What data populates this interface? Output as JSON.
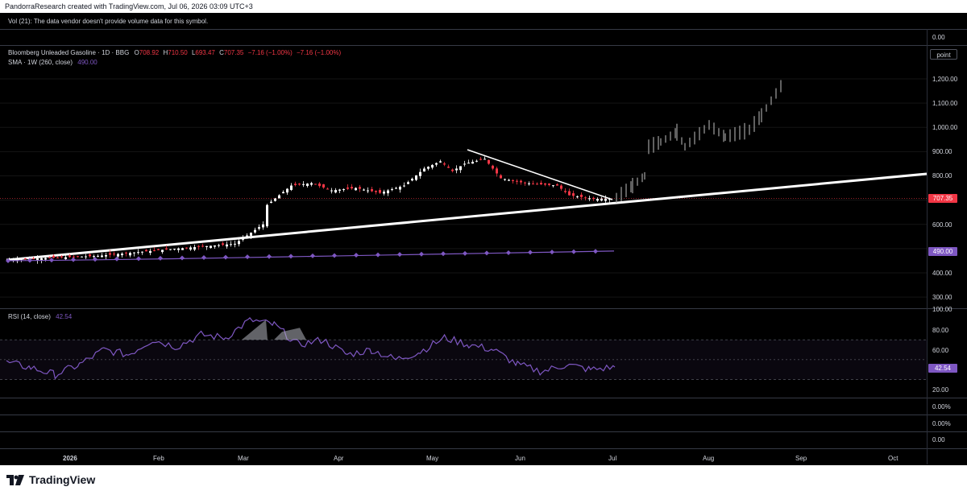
{
  "header": {
    "credit": "PandorraResearch created with TradingView.com, Jul 06, 2026 03:09 UTC+3"
  },
  "volume_pane": {
    "note": "Vol (21): The data vendor doesn't provide volume data for this symbol.",
    "axis_value": "0.00"
  },
  "main_pane": {
    "symbol_title": "Bloomberg Unleaded Gasoline · 1D · BBG",
    "ohlc": {
      "o_label": "O",
      "o": "708.92",
      "h_label": "H",
      "h": "710.50",
      "l_label": "L",
      "l": "693.47",
      "c_label": "C",
      "c": "707.35",
      "change": "−7.16 (−1.00%)",
      "change2": "−7.16 (−1.00%)"
    },
    "sma_label": "SMA · 1W (260, close)",
    "sma_value": "490.00",
    "unit_button": "point",
    "price_badge": "707.35",
    "sma_badge": "490.00",
    "y_ticks": [
      "1,200.00",
      "1,100.00",
      "1,000.00",
      "900.00",
      "800.00",
      "700.00",
      "600.00",
      "400.00",
      "300.00"
    ],
    "colors": {
      "up": "#ffffff",
      "down": "#f23645",
      "sma": "#7e57c2",
      "badge_price": "#f23645"
    }
  },
  "rsi_pane": {
    "label": "RSI (14, close)",
    "value": "42.54",
    "y_ticks": [
      "100.00",
      "80.00",
      "60.00",
      "20.00"
    ],
    "badge": "42.54"
  },
  "extra_panes": {
    "pct_a": "0.00%",
    "pct_b": "0.00%",
    "zero_a": "0.00",
    "zero_b": "0.00"
  },
  "x_axis": {
    "labels": [
      "2026",
      "Feb",
      "Mar",
      "Apr",
      "May",
      "Jun",
      "Jul",
      "Aug",
      "Sep",
      "Oct"
    ]
  },
  "footer": {
    "brand": "TradingView"
  },
  "chart_data": {
    "type": "line",
    "title": "Bloomberg Unleaded Gasoline · 1D · BBG",
    "xlabel": "",
    "ylabel": "",
    "ylim": [
      270,
      1260
    ],
    "series": [
      {
        "name": "SMA · 1W (260, close)",
        "values": [
          450,
          452,
          455,
          458,
          462,
          466,
          470,
          474,
          478,
          482,
          486,
          490
        ]
      },
      {
        "name": "RSI (14, close)",
        "values": [
          47,
          42,
          35,
          45,
          60,
          55,
          70,
          63,
          75,
          72,
          90,
          85,
          65,
          70,
          55,
          60,
          50,
          58,
          72,
          65,
          60,
          45,
          38,
          45,
          40,
          42.54
        ]
      }
    ],
    "close_reference": [
      [
        "2026-01-01",
        450
      ],
      [
        "2026-02-01",
        480
      ],
      [
        "2026-03-01",
        510
      ],
      [
        "2026-03-20",
        760
      ],
      [
        "2026-04-01",
        740
      ],
      [
        "2026-05-01",
        850
      ],
      [
        "2026-05-15",
        890
      ],
      [
        "2026-06-01",
        760
      ],
      [
        "2026-06-25",
        707.35
      ],
      [
        "2026-07-01",
        707.35
      ]
    ]
  }
}
